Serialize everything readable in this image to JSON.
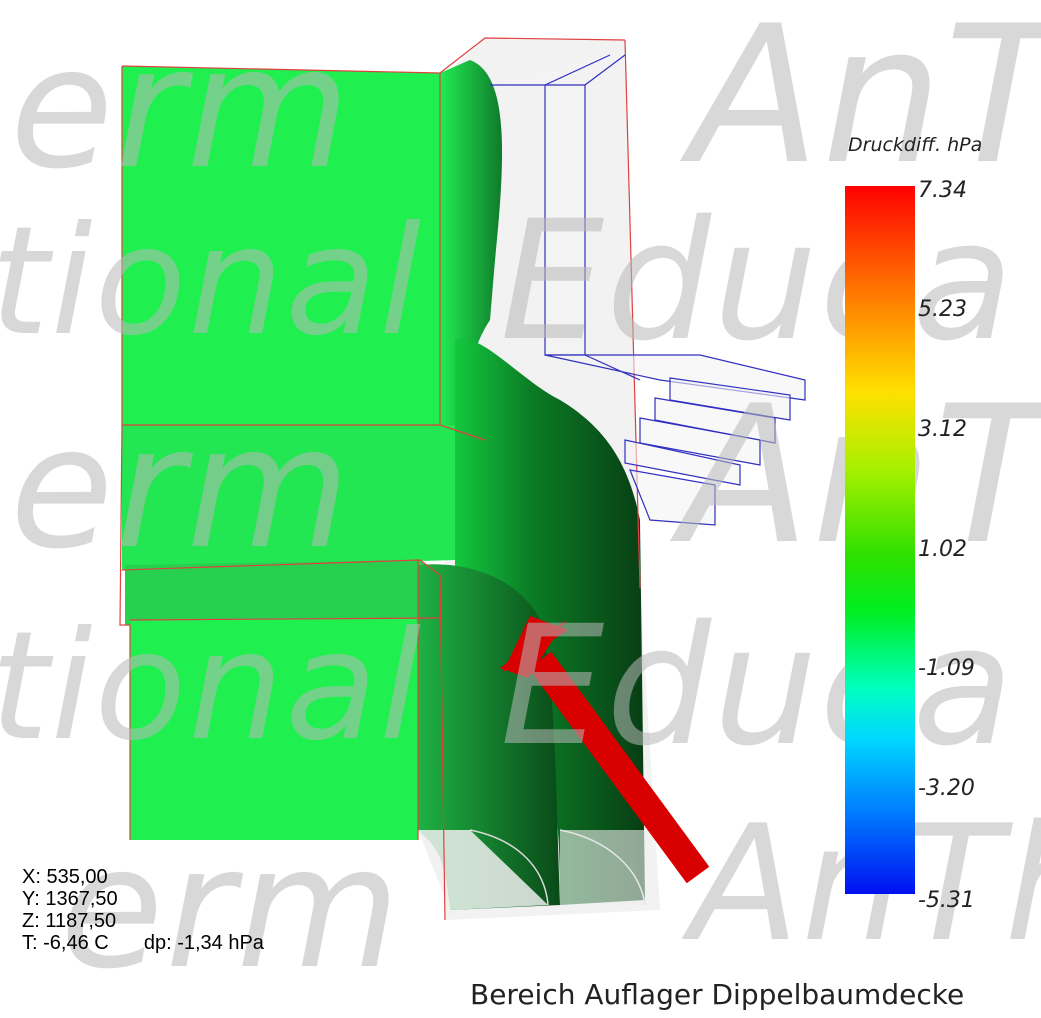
{
  "legend": {
    "title": "Druckdiff. hPa",
    "ticks": [
      "7.34",
      "5.23",
      "3.12",
      "1.02",
      "-1.09",
      "-3.20",
      "-5.31"
    ],
    "colors": [
      "#ff0000",
      "#ffe000",
      "#30e000",
      "#00ffc0",
      "#0080ff",
      "#0010f0"
    ]
  },
  "probe": {
    "x": "X: 535,00",
    "y": "Y: 1367,50",
    "z": "Z: 1187,50",
    "t": "T: -6,46 C",
    "dp": "dp: -1,34 hPa"
  },
  "caption": "Bereich Auflager Dippelbaumdecke",
  "watermarks": {
    "row1_left": "erm",
    "row1_right": "AnTh",
    "row2_left": "tional",
    "row2_right": "Educa",
    "row3_left": "erm",
    "row3_right": "AnTh",
    "row4_left": "tional",
    "row4_right": "Educa",
    "row5_right": "AnTh",
    "row5_left": "erm"
  },
  "colors": {
    "surface_green": "#1ff050",
    "surface_dark": "#0e8a2c",
    "arrow": "#d80000",
    "box_red": "#e04040",
    "box_blue": "#3030c0"
  }
}
